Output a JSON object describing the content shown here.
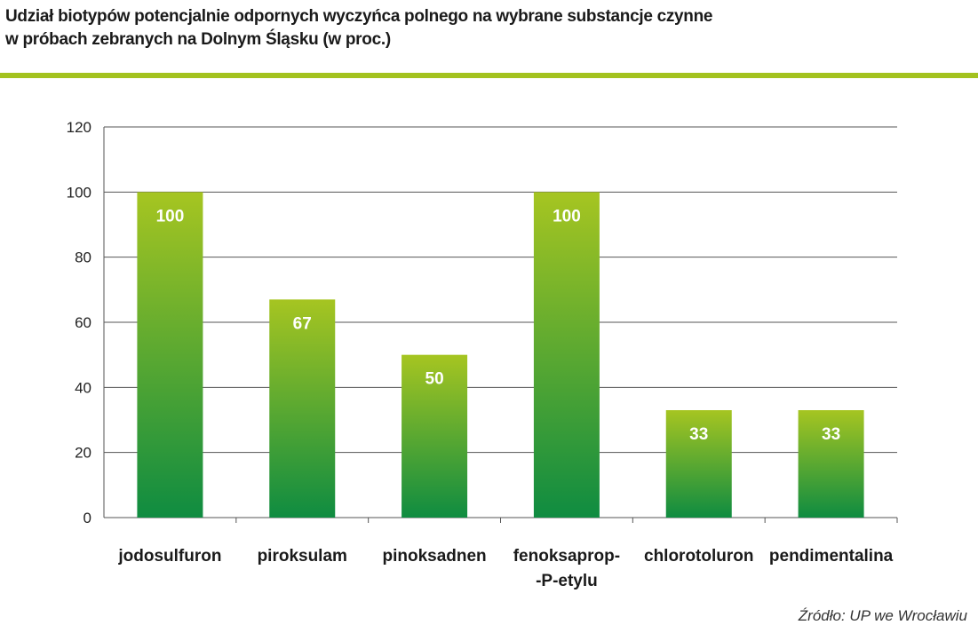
{
  "colors": {
    "accent_rule": "#a3c21f",
    "bar_top": "#a6c521",
    "bar_bottom": "#0f8c41",
    "grid": "#555555"
  },
  "chart_data": {
    "type": "bar",
    "title_lines": [
      "Udział biotypów potencjalnie odpornych wyczyńca polnego na wybrane substancje czynne",
      "w próbach zebranych na Dolnym Śląsku (w proc.)"
    ],
    "categories": [
      [
        "jodosulfuron"
      ],
      [
        "piroksulam"
      ],
      [
        "pinoksadnen"
      ],
      [
        "fenoksaprop-",
        "-P-etylu"
      ],
      [
        "chlorotoluron"
      ],
      [
        "pendimentalina"
      ]
    ],
    "values": [
      100,
      67,
      50,
      100,
      33,
      33
    ],
    "data_labels": [
      "100",
      "67",
      "50",
      "100",
      "33",
      "33"
    ],
    "yticks": [
      "0",
      "20",
      "40",
      "60",
      "80",
      "100",
      "120"
    ],
    "ylim": [
      0,
      120
    ],
    "grid": true,
    "legend": "none",
    "source": "Źródło: UP we Wrocławiu"
  }
}
